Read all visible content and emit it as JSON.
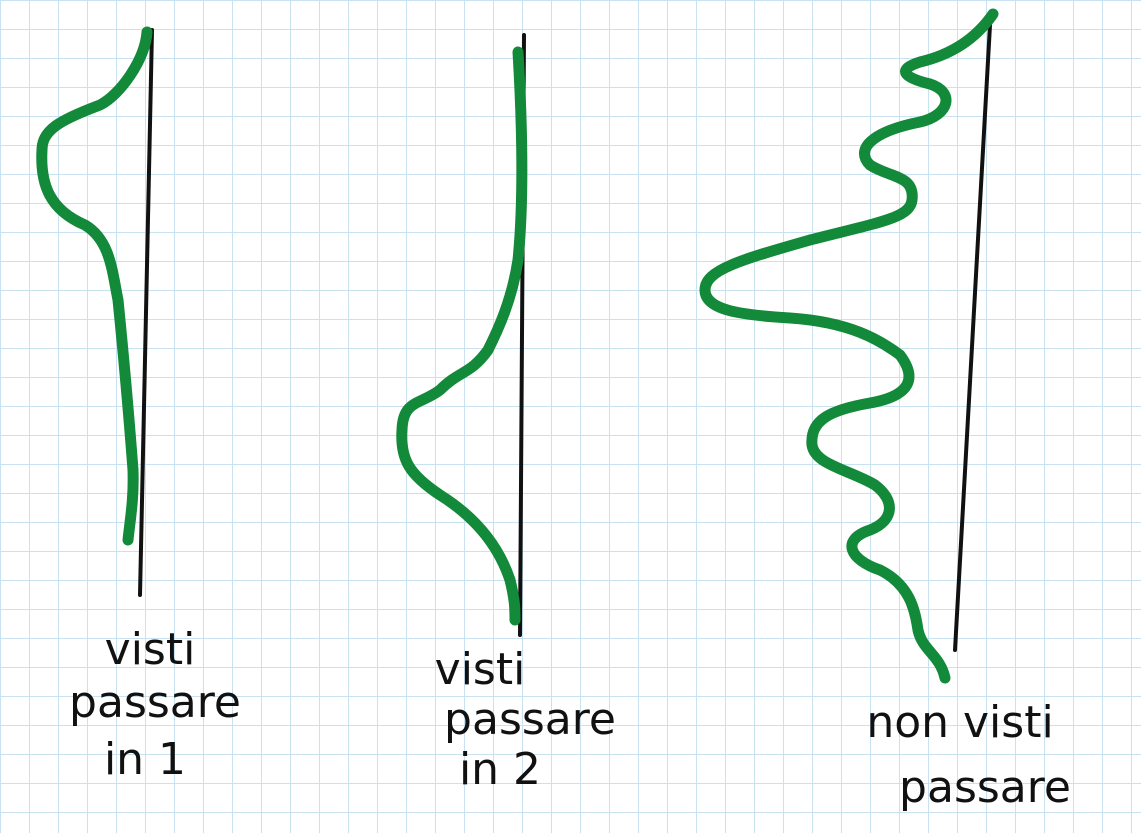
{
  "labels": [
    {
      "lines": [
        "visti",
        "passare",
        "in 1"
      ]
    },
    {
      "lines": [
        "visti",
        "passare",
        "in 2"
      ]
    },
    {
      "lines": [
        "non visti",
        "passare"
      ]
    }
  ]
}
